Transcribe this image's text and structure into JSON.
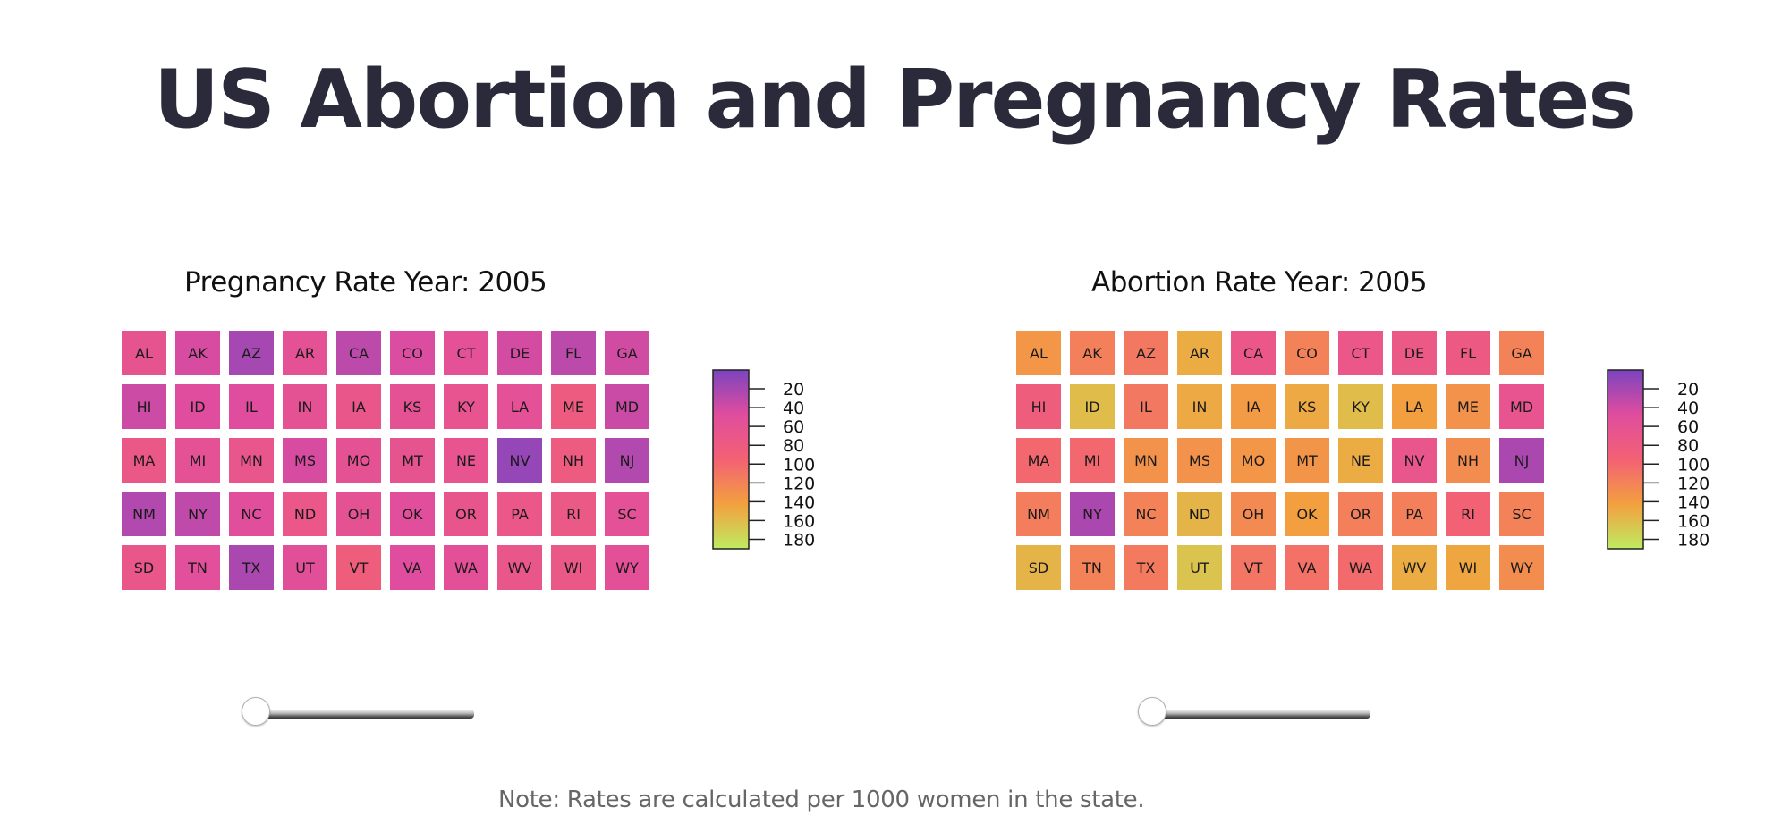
{
  "title": "US Abortion and Pregnancy Rates",
  "note": "Note: Rates are calculated per 1000 women in the state.",
  "colors": {
    "scale": [
      "#bfeb60",
      "#f3a03f",
      "#f36174",
      "#e04d9e",
      "#7c44bf"
    ],
    "slider_track": "#555555",
    "title_text": "#2b2a3a"
  },
  "legend": {
    "ticks": [
      "20",
      "40",
      "60",
      "80",
      "100",
      "120",
      "140",
      "160",
      "180"
    ]
  },
  "chart_data": [
    {
      "type": "heatmap",
      "title": "Pregnancy Rate Year: 2005",
      "year": 2005,
      "color_range": [
        0,
        190
      ],
      "slider": {
        "value": 2005
      },
      "states": [
        {
          "abbr": "AL",
          "value": 127
        },
        {
          "abbr": "AK",
          "value": 147
        },
        {
          "abbr": "AZ",
          "value": 170
        },
        {
          "abbr": "AR",
          "value": 132
        },
        {
          "abbr": "CA",
          "value": 160
        },
        {
          "abbr": "CO",
          "value": 145
        },
        {
          "abbr": "CT",
          "value": 133
        },
        {
          "abbr": "DE",
          "value": 148
        },
        {
          "abbr": "FL",
          "value": 160
        },
        {
          "abbr": "GA",
          "value": 150
        },
        {
          "abbr": "HI",
          "value": 152
        },
        {
          "abbr": "ID",
          "value": 142
        },
        {
          "abbr": "IL",
          "value": 142
        },
        {
          "abbr": "IN",
          "value": 130
        },
        {
          "abbr": "IA",
          "value": 120
        },
        {
          "abbr": "KS",
          "value": 130
        },
        {
          "abbr": "KY",
          "value": 125
        },
        {
          "abbr": "LA",
          "value": 133
        },
        {
          "abbr": "ME",
          "value": 110
        },
        {
          "abbr": "MD",
          "value": 153
        },
        {
          "abbr": "MA",
          "value": 117
        },
        {
          "abbr": "MI",
          "value": 132
        },
        {
          "abbr": "MN",
          "value": 122
        },
        {
          "abbr": "MS",
          "value": 147
        },
        {
          "abbr": "MO",
          "value": 130
        },
        {
          "abbr": "MT",
          "value": 127
        },
        {
          "abbr": "NE",
          "value": 125
        },
        {
          "abbr": "NV",
          "value": 178
        },
        {
          "abbr": "NH",
          "value": 110
        },
        {
          "abbr": "NJ",
          "value": 165
        },
        {
          "abbr": "NM",
          "value": 165
        },
        {
          "abbr": "NY",
          "value": 158
        },
        {
          "abbr": "NC",
          "value": 140
        },
        {
          "abbr": "ND",
          "value": 118
        },
        {
          "abbr": "OH",
          "value": 130
        },
        {
          "abbr": "OK",
          "value": 140
        },
        {
          "abbr": "OR",
          "value": 123
        },
        {
          "abbr": "PA",
          "value": 118
        },
        {
          "abbr": "RI",
          "value": 115
        },
        {
          "abbr": "SC",
          "value": 133
        },
        {
          "abbr": "SD",
          "value": 120
        },
        {
          "abbr": "TN",
          "value": 138
        },
        {
          "abbr": "TX",
          "value": 168
        },
        {
          "abbr": "UT",
          "value": 137
        },
        {
          "abbr": "VT",
          "value": 105
        },
        {
          "abbr": "VA",
          "value": 142
        },
        {
          "abbr": "WA",
          "value": 135
        },
        {
          "abbr": "WV",
          "value": 120
        },
        {
          "abbr": "WI",
          "value": 117
        },
        {
          "abbr": "WY",
          "value": 135
        }
      ]
    },
    {
      "type": "heatmap",
      "title": "Abortion Rate Year: 2005",
      "year": 2005,
      "color_range": [
        0,
        190
      ],
      "slider": {
        "value": 2005
      },
      "states": [
        {
          "abbr": "AL",
          "value": 55
        },
        {
          "abbr": "AK",
          "value": 72
        },
        {
          "abbr": "AZ",
          "value": 78
        },
        {
          "abbr": "AR",
          "value": 40
        },
        {
          "abbr": "CA",
          "value": 118
        },
        {
          "abbr": "CO",
          "value": 70
        },
        {
          "abbr": "CT",
          "value": 118
        },
        {
          "abbr": "DE",
          "value": 115
        },
        {
          "abbr": "FL",
          "value": 112
        },
        {
          "abbr": "GA",
          "value": 70
        },
        {
          "abbr": "HI",
          "value": 105
        },
        {
          "abbr": "ID",
          "value": 30
        },
        {
          "abbr": "IL",
          "value": 78
        },
        {
          "abbr": "IN",
          "value": 42
        },
        {
          "abbr": "IA",
          "value": 52
        },
        {
          "abbr": "KS",
          "value": 42
        },
        {
          "abbr": "KY",
          "value": 30
        },
        {
          "abbr": "LA",
          "value": 48
        },
        {
          "abbr": "ME",
          "value": 58
        },
        {
          "abbr": "MD",
          "value": 126
        },
        {
          "abbr": "MA",
          "value": 90
        },
        {
          "abbr": "MI",
          "value": 90
        },
        {
          "abbr": "MN",
          "value": 58
        },
        {
          "abbr": "MS",
          "value": 58
        },
        {
          "abbr": "MO",
          "value": 55
        },
        {
          "abbr": "MT",
          "value": 56
        },
        {
          "abbr": "NE",
          "value": 40
        },
        {
          "abbr": "NV",
          "value": 122
        },
        {
          "abbr": "NH",
          "value": 62
        },
        {
          "abbr": "NJ",
          "value": 168
        },
        {
          "abbr": "NM",
          "value": 74
        },
        {
          "abbr": "NY",
          "value": 168
        },
        {
          "abbr": "NC",
          "value": 70
        },
        {
          "abbr": "ND",
          "value": 35
        },
        {
          "abbr": "OH",
          "value": 64
        },
        {
          "abbr": "OK",
          "value": 48
        },
        {
          "abbr": "OR",
          "value": 72
        },
        {
          "abbr": "PA",
          "value": 72
        },
        {
          "abbr": "RI",
          "value": 96
        },
        {
          "abbr": "SC",
          "value": 70
        },
        {
          "abbr": "SD",
          "value": 35
        },
        {
          "abbr": "TN",
          "value": 70
        },
        {
          "abbr": "TX",
          "value": 76
        },
        {
          "abbr": "UT",
          "value": 25
        },
        {
          "abbr": "VT",
          "value": 80
        },
        {
          "abbr": "VA",
          "value": 83
        },
        {
          "abbr": "WA",
          "value": 88
        },
        {
          "abbr": "WV",
          "value": 40
        },
        {
          "abbr": "WI",
          "value": 44
        },
        {
          "abbr": "WY",
          "value": 62
        }
      ]
    }
  ]
}
